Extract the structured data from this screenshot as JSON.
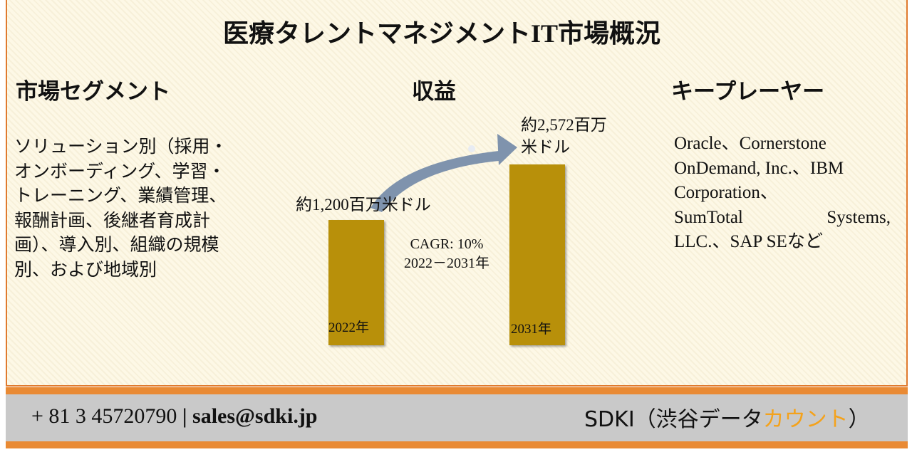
{
  "header": {
    "title": "医療タレントマネジメントIT市場概況"
  },
  "segments": {
    "heading": "市場セグメント",
    "lines": [
      "ソリューション別（採用・",
      "オンボーディング、学習・",
      "トレーニング、業績管理、",
      "報酬計画、後継者育成計",
      "画）、導入別、組織の規模",
      "別、および地域別"
    ]
  },
  "revenue": {
    "heading": "収益",
    "start_value_label": "約1,200百万米ドル",
    "end_value_label_lines": [
      "約2,572百万",
      "米ドル"
    ],
    "cagr": "CAGR: 10%",
    "period": "2022－2031年",
    "start_year": "2022年",
    "end_year": "2031年"
  },
  "players": {
    "heading": "キープレーヤー",
    "lines": [
      "Oracle、Cornerstone",
      "OnDemand, Inc.、IBM",
      "Corporation、",
      "SumTotal Systems,",
      "LLC.、SAP SEなど"
    ]
  },
  "footer": {
    "phone": "+ 81 3 45720790",
    "separator": "|",
    "email": "sales@sdki.jp",
    "brand_prefix": "SDKI（渋谷データ",
    "brand_highlight": "カウント",
    "brand_suffix": "）"
  }
}
